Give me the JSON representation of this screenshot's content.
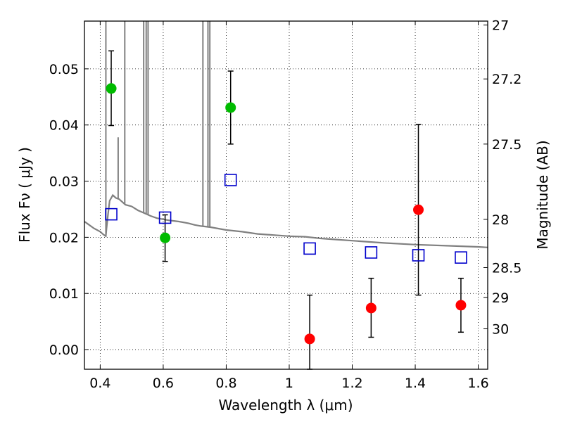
{
  "chart_data": {
    "type": "scatter",
    "xlabel": "Wavelength  λ (μm)",
    "ylabel": "Flux  Fν  ( μJy )",
    "ylabel_right": "Magnitude (AB)",
    "xlim": [
      0.35,
      1.63
    ],
    "ylim": [
      -0.0035,
      0.0585
    ],
    "x_ticks": [
      0.4,
      0.6,
      0.8,
      1.0,
      1.2,
      1.4,
      1.6
    ],
    "x_tick_labels": [
      "0.4",
      "0.6",
      "0.8",
      "1",
      "1.2",
      "1.4",
      "1.6"
    ],
    "y_ticks": [
      0.0,
      0.01,
      0.02,
      0.03,
      0.04,
      0.05
    ],
    "y_tick_labels": [
      "0.00",
      "0.01",
      "0.02",
      "0.03",
      "0.04",
      "0.05"
    ],
    "right_ticks": [
      {
        "label": "27",
        "flux": 0.0578
      },
      {
        "label": "27.2",
        "flux": 0.0482
      },
      {
        "label": "27.5",
        "flux": 0.0366
      },
      {
        "label": "28",
        "flux": 0.0232
      },
      {
        "label": "28.5",
        "flux": 0.0146
      },
      {
        "label": "29",
        "flux": 0.0093
      },
      {
        "label": "30",
        "flux": 0.0037
      }
    ],
    "grid": true,
    "series": [
      {
        "marker": "circle",
        "color": "#00bb00",
        "points": [
          {
            "x": 0.435,
            "y": 0.0465,
            "err_low": 0.0399,
            "err_high": 0.0532
          },
          {
            "x": 0.606,
            "y": 0.0199,
            "err_low": 0.0157,
            "err_high": 0.024
          },
          {
            "x": 0.814,
            "y": 0.0431,
            "err_low": 0.0366,
            "err_high": 0.0496
          }
        ]
      },
      {
        "marker": "circle",
        "color": "#ff0000",
        "points": [
          {
            "x": 1.065,
            "y": 0.0019,
            "err_low": -0.0035,
            "err_high": 0.0097
          },
          {
            "x": 1.26,
            "y": 0.0074,
            "err_low": 0.0022,
            "err_high": 0.0127
          },
          {
            "x": 1.41,
            "y": 0.0249,
            "err_low": 0.0097,
            "err_high": 0.0401
          },
          {
            "x": 1.545,
            "y": 0.0079,
            "err_low": 0.0031,
            "err_high": 0.0127
          }
        ]
      },
      {
        "marker": "square-open",
        "color": "#0000cc",
        "points": [
          {
            "x": 0.435,
            "y": 0.0241
          },
          {
            "x": 0.606,
            "y": 0.0235
          },
          {
            "x": 0.814,
            "y": 0.0302
          },
          {
            "x": 1.065,
            "y": 0.018
          },
          {
            "x": 1.26,
            "y": 0.0173
          },
          {
            "x": 1.41,
            "y": 0.0168
          },
          {
            "x": 1.545,
            "y": 0.0164
          }
        ]
      }
    ],
    "sed_model": {
      "color": "#808080",
      "x": [
        0.35,
        0.36,
        0.38,
        0.4,
        0.41,
        0.415,
        0.418,
        0.42,
        0.425,
        0.43,
        0.44,
        0.45,
        0.46,
        0.47,
        0.48,
        0.5,
        0.52,
        0.54,
        0.56,
        0.58,
        0.6,
        0.62,
        0.65,
        0.68,
        0.7,
        0.72,
        0.75,
        0.8,
        0.85,
        0.9,
        0.95,
        1.0,
        1.05,
        1.1,
        1.15,
        1.2,
        1.3,
        1.4,
        1.5,
        1.6,
        1.63
      ],
      "y": [
        0.0228,
        0.0224,
        0.0216,
        0.021,
        0.0205,
        0.0203,
        0.0202,
        0.0215,
        0.0242,
        0.0265,
        0.0275,
        0.027,
        0.0268,
        0.0263,
        0.0258,
        0.0255,
        0.0248,
        0.0243,
        0.0238,
        0.0234,
        0.0232,
        0.023,
        0.0228,
        0.0225,
        0.0222,
        0.022,
        0.0218,
        0.0213,
        0.021,
        0.0206,
        0.0204,
        0.0202,
        0.0201,
        0.0198,
        0.0196,
        0.0194,
        0.019,
        0.0187,
        0.0185,
        0.0183,
        0.0182
      ],
      "emission_lines": [
        {
          "x": 0.418,
          "peak": 0.0585
        },
        {
          "x": 0.478,
          "peak": 0.0585
        },
        {
          "x": 0.457,
          "peak": 0.0378
        },
        {
          "x": 0.538,
          "peak": 0.0585
        },
        {
          "x": 0.546,
          "peak": 0.0585
        },
        {
          "x": 0.552,
          "peak": 0.0585
        },
        {
          "x": 0.726,
          "peak": 0.0585
        },
        {
          "x": 0.742,
          "peak": 0.0585
        },
        {
          "x": 0.748,
          "peak": 0.0585
        }
      ]
    }
  }
}
